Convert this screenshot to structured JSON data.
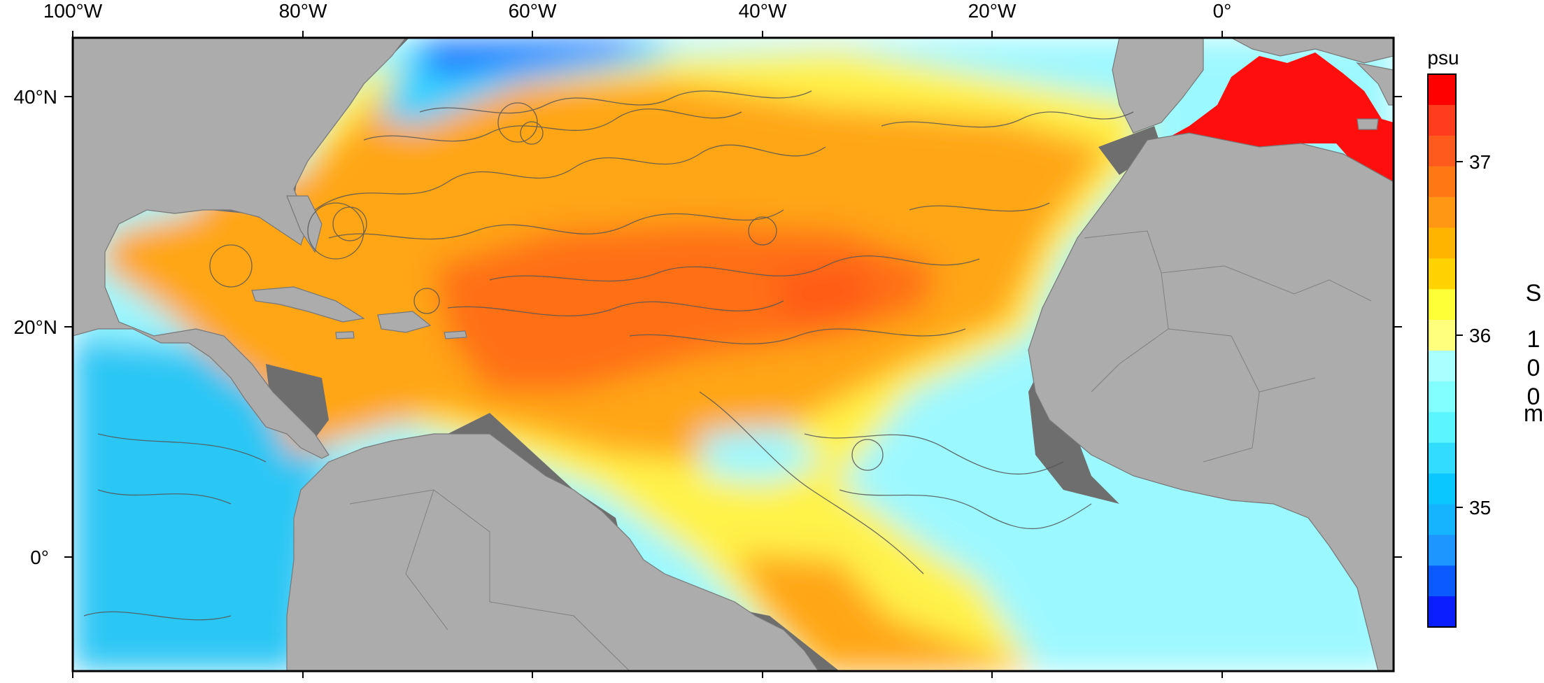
{
  "map": {
    "x_axis_labels": [
      "100°W",
      "80°W",
      "60°W",
      "40°W",
      "20°W",
      "0°"
    ],
    "y_axis_labels": [
      "40°N",
      "20°N",
      "0°"
    ],
    "colors": {
      "land": "#acacac",
      "shelf": "#6e6e6e",
      "track": "#555555",
      "frame": "#000000"
    }
  },
  "colorbar": {
    "unit": "psu",
    "tick_labels": [
      "37",
      "36",
      "35"
    ],
    "variable_label": [
      "S",
      "1",
      "0",
      "0",
      "m"
    ],
    "colors": [
      "#ff0000",
      "#ff3c1e",
      "#ff5a1e",
      "#ff7814",
      "#ff9614",
      "#ffb400",
      "#ffd200",
      "#ffff37",
      "#ffff7d",
      "#aaffff",
      "#82ffff",
      "#5af5ff",
      "#32dcff",
      "#0ac8ff",
      "#14b4ff",
      "#1e96ff",
      "#0a5aff",
      "#0a1eff"
    ]
  }
}
